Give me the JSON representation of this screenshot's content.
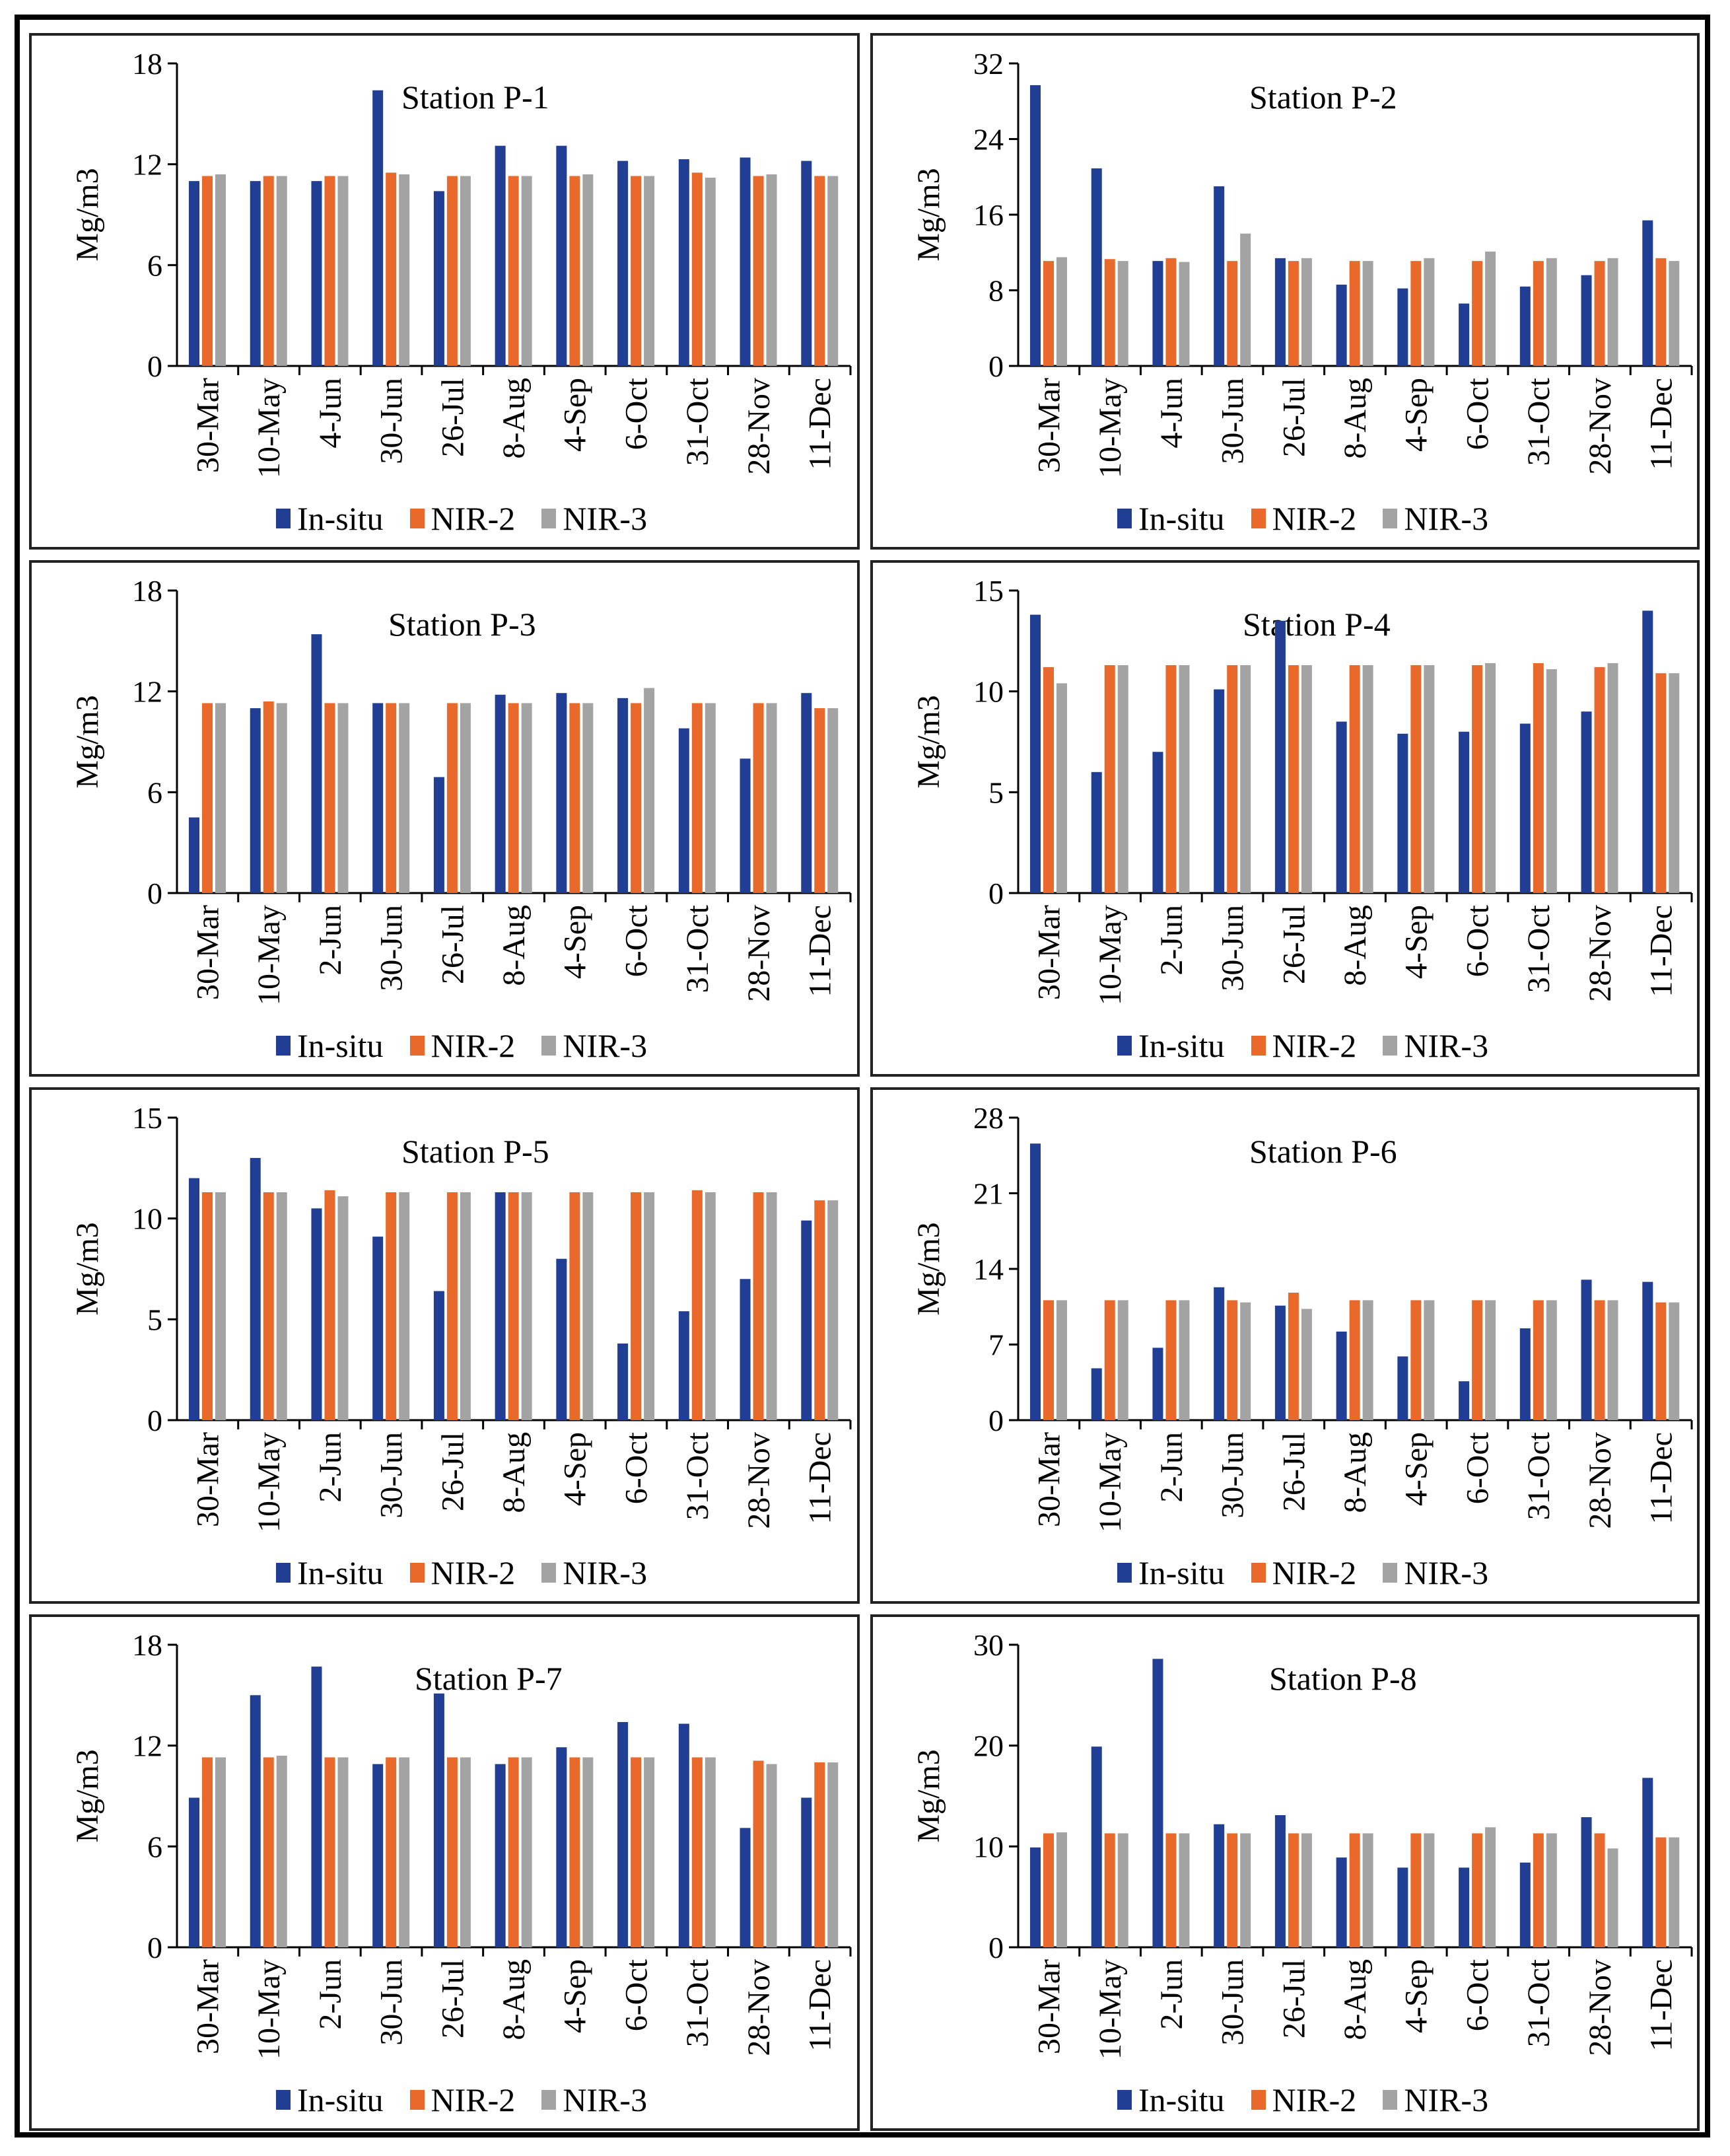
{
  "colors": {
    "in_situ": "#1f3e94",
    "nir2": "#e8692a",
    "nir3": "#a3a3a3"
  },
  "chart_data": [
    {
      "type": "bar",
      "title": "Station P-1",
      "ylabel": "Mg/m3",
      "ylim": [
        0,
        18
      ],
      "yticks": [
        0,
        6,
        12,
        18
      ],
      "categories": [
        "30-Mar",
        "10-May",
        "4-Jun",
        "30-Jun",
        "26-Jul",
        "8-Aug",
        "4-Sep",
        "6-Oct",
        "31-Oct",
        "28-Nov",
        "11-Dec"
      ],
      "series": [
        {
          "name": "In-situ",
          "values": [
            11.0,
            11.0,
            11.0,
            16.4,
            10.4,
            13.1,
            13.1,
            12.2,
            12.3,
            12.4,
            12.2
          ]
        },
        {
          "name": "NIR-2",
          "values": [
            11.3,
            11.3,
            11.3,
            11.5,
            11.3,
            11.3,
            11.3,
            11.3,
            11.5,
            11.3,
            11.3
          ]
        },
        {
          "name": "NIR-3",
          "values": [
            11.4,
            11.3,
            11.3,
            11.4,
            11.3,
            11.3,
            11.4,
            11.3,
            11.2,
            11.4,
            11.3
          ]
        }
      ]
    },
    {
      "type": "bar",
      "title": "Station P-2",
      "ylabel": "Mg/m3",
      "ylim": [
        0,
        32
      ],
      "yticks": [
        0,
        8,
        16,
        24,
        32
      ],
      "categories": [
        "30-Mar",
        "10-May",
        "4-Jun",
        "30-Jun",
        "26-Jul",
        "8-Aug",
        "4-Sep",
        "6-Oct",
        "31-Oct",
        "28-Nov",
        "11-Dec"
      ],
      "series": [
        {
          "name": "In-situ",
          "values": [
            29.7,
            20.9,
            11.1,
            19.0,
            11.4,
            8.6,
            8.2,
            6.6,
            8.4,
            9.6,
            15.4
          ]
        },
        {
          "name": "NIR-2",
          "values": [
            11.1,
            11.3,
            11.4,
            11.1,
            11.1,
            11.1,
            11.1,
            11.1,
            11.1,
            11.1,
            11.4
          ]
        },
        {
          "name": "NIR-3",
          "values": [
            11.5,
            11.1,
            11.0,
            14.0,
            11.4,
            11.1,
            11.4,
            12.1,
            11.4,
            11.4,
            11.1
          ]
        }
      ]
    },
    {
      "type": "bar",
      "title": "Station P-3",
      "ylabel": "Mg/m3",
      "ylim": [
        0,
        18
      ],
      "yticks": [
        0,
        6,
        12,
        18
      ],
      "categories": [
        "30-Mar",
        "10-May",
        "2-Jun",
        "30-Jun",
        "26-Jul",
        "8-Aug",
        "4-Sep",
        "6-Oct",
        "31-Oct",
        "28-Nov",
        "11-Dec"
      ],
      "series": [
        {
          "name": "In-situ",
          "values": [
            4.5,
            11.0,
            15.4,
            11.3,
            6.9,
            11.8,
            11.9,
            11.6,
            9.8,
            8.0,
            11.9
          ]
        },
        {
          "name": "NIR-2",
          "values": [
            11.3,
            11.4,
            11.3,
            11.3,
            11.3,
            11.3,
            11.3,
            11.3,
            11.3,
            11.3,
            11.0
          ]
        },
        {
          "name": "NIR-3",
          "values": [
            11.3,
            11.3,
            11.3,
            11.3,
            11.3,
            11.3,
            11.3,
            12.2,
            11.3,
            11.3,
            11.0
          ]
        }
      ]
    },
    {
      "type": "bar",
      "title": "Station P-4",
      "ylabel": "Mg/m3",
      "ylim": [
        0,
        15
      ],
      "yticks": [
        0,
        5,
        10,
        15
      ],
      "categories": [
        "30-Mar",
        "10-May",
        "2-Jun",
        "30-Jun",
        "26-Jul",
        "8-Aug",
        "4-Sep",
        "6-Oct",
        "31-Oct",
        "28-Nov",
        "11-Dec"
      ],
      "series": [
        {
          "name": "In-situ",
          "values": [
            13.8,
            6.0,
            7.0,
            10.1,
            13.5,
            8.5,
            7.9,
            8.0,
            8.4,
            9.0,
            14.0
          ]
        },
        {
          "name": "NIR-2",
          "values": [
            11.2,
            11.3,
            11.3,
            11.3,
            11.3,
            11.3,
            11.3,
            11.3,
            11.4,
            11.2,
            10.9
          ]
        },
        {
          "name": "NIR-3",
          "values": [
            10.4,
            11.3,
            11.3,
            11.3,
            11.3,
            11.3,
            11.3,
            11.4,
            11.1,
            11.4,
            10.9
          ]
        }
      ]
    },
    {
      "type": "bar",
      "title": "Station P-5",
      "ylabel": "Mg/m3",
      "ylim": [
        0,
        15
      ],
      "yticks": [
        0,
        5,
        10,
        15
      ],
      "categories": [
        "30-Mar",
        "10-May",
        "2-Jun",
        "30-Jun",
        "26-Jul",
        "8-Aug",
        "4-Sep",
        "6-Oct",
        "31-Oct",
        "28-Nov",
        "11-Dec"
      ],
      "series": [
        {
          "name": "In-situ",
          "values": [
            12.0,
            13.0,
            10.5,
            9.1,
            6.4,
            11.3,
            8.0,
            3.8,
            5.4,
            7.0,
            9.9
          ]
        },
        {
          "name": "NIR-2",
          "values": [
            11.3,
            11.3,
            11.4,
            11.3,
            11.3,
            11.3,
            11.3,
            11.3,
            11.4,
            11.3,
            10.9
          ]
        },
        {
          "name": "NIR-3",
          "values": [
            11.3,
            11.3,
            11.1,
            11.3,
            11.3,
            11.3,
            11.3,
            11.3,
            11.3,
            11.3,
            10.9
          ]
        }
      ]
    },
    {
      "type": "bar",
      "title": "Station P-6",
      "ylabel": "Mg/m3",
      "ylim": [
        0,
        28
      ],
      "yticks": [
        0,
        7,
        14,
        21,
        28
      ],
      "categories": [
        "30-Mar",
        "10-May",
        "2-Jun",
        "30-Jun",
        "26-Jul",
        "8-Aug",
        "4-Sep",
        "6-Oct",
        "31-Oct",
        "28-Nov",
        "11-Dec"
      ],
      "series": [
        {
          "name": "In-situ",
          "values": [
            25.6,
            4.8,
            6.7,
            12.3,
            10.6,
            8.2,
            5.9,
            3.6,
            8.5,
            13.0,
            12.8
          ]
        },
        {
          "name": "NIR-2",
          "values": [
            11.1,
            11.1,
            11.1,
            11.1,
            11.8,
            11.1,
            11.1,
            11.1,
            11.1,
            11.1,
            10.9
          ]
        },
        {
          "name": "NIR-3",
          "values": [
            11.1,
            11.1,
            11.1,
            10.9,
            10.3,
            11.1,
            11.1,
            11.1,
            11.1,
            11.1,
            10.9
          ]
        }
      ]
    },
    {
      "type": "bar",
      "title": "Station P-7",
      "ylabel": "Mg/m3",
      "ylim": [
        0,
        18
      ],
      "yticks": [
        0,
        6,
        12,
        18
      ],
      "categories": [
        "30-Mar",
        "10-May",
        "2-Jun",
        "30-Jun",
        "26-Jul",
        "8-Aug",
        "4-Sep",
        "6-Oct",
        "31-Oct",
        "28-Nov",
        "11-Dec"
      ],
      "series": [
        {
          "name": "In-situ",
          "values": [
            8.9,
            15.0,
            16.7,
            10.9,
            15.1,
            10.9,
            11.9,
            13.4,
            13.3,
            7.1,
            8.9
          ]
        },
        {
          "name": "NIR-2",
          "values": [
            11.3,
            11.3,
            11.3,
            11.3,
            11.3,
            11.3,
            11.3,
            11.3,
            11.3,
            11.1,
            11.0
          ]
        },
        {
          "name": "NIR-3",
          "values": [
            11.3,
            11.4,
            11.3,
            11.3,
            11.3,
            11.3,
            11.3,
            11.3,
            11.3,
            10.9,
            11.0
          ]
        }
      ]
    },
    {
      "type": "bar",
      "title": "Station P-8",
      "ylabel": "Mg/m3",
      "ylim": [
        0,
        30
      ],
      "yticks": [
        0,
        10,
        20,
        30
      ],
      "categories": [
        "30-Mar",
        "10-May",
        "2-Jun",
        "30-Jun",
        "26-Jul",
        "8-Aug",
        "4-Sep",
        "6-Oct",
        "31-Oct",
        "28-Nov",
        "11-Dec"
      ],
      "series": [
        {
          "name": "In-situ",
          "values": [
            9.9,
            19.9,
            28.6,
            12.2,
            13.1,
            8.9,
            7.9,
            7.9,
            8.4,
            12.9,
            16.8
          ]
        },
        {
          "name": "NIR-2",
          "values": [
            11.3,
            11.3,
            11.3,
            11.3,
            11.3,
            11.3,
            11.3,
            11.3,
            11.3,
            11.3,
            10.9
          ]
        },
        {
          "name": "NIR-3",
          "values": [
            11.4,
            11.3,
            11.3,
            11.3,
            11.3,
            11.3,
            11.3,
            11.9,
            11.3,
            9.8,
            10.9
          ]
        }
      ]
    }
  ]
}
